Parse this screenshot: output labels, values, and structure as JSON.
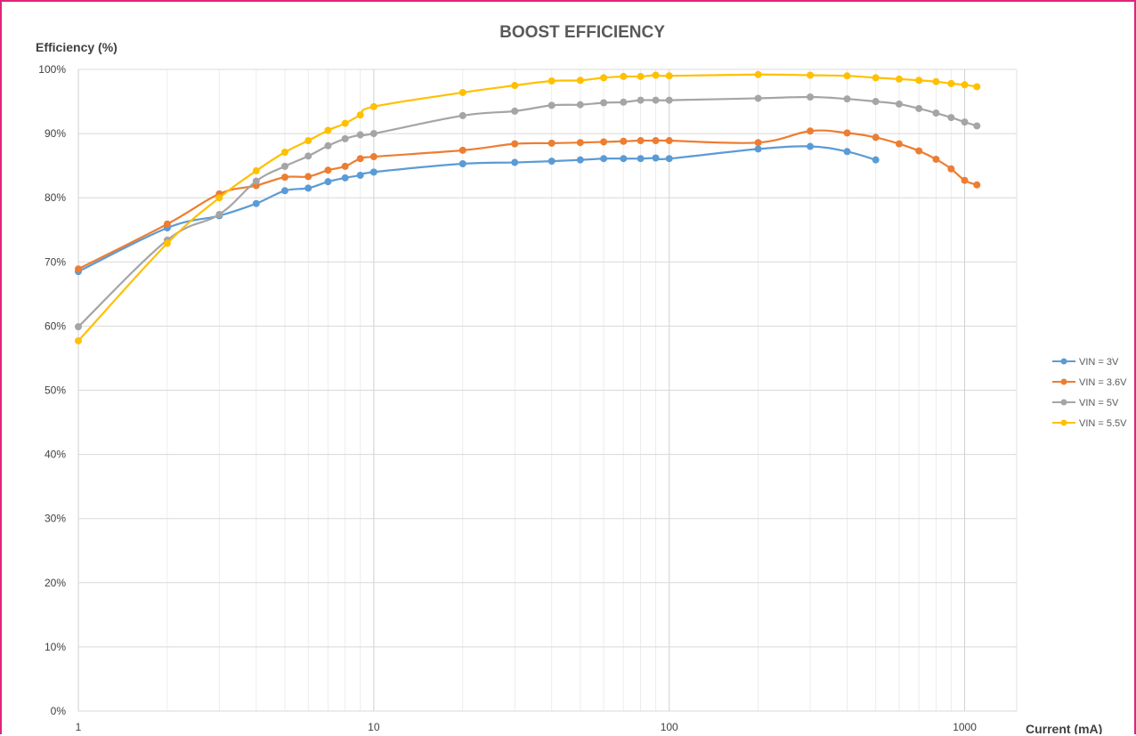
{
  "chart_data": {
    "type": "line",
    "title": "BOOST EFFICIENCY",
    "xlabel": "Current (mA)",
    "ylabel": "Efficiency (%)",
    "x_scale": "log",
    "xlim": [
      1,
      1500
    ],
    "ylim": [
      0,
      100
    ],
    "x_ticks": [
      1,
      10,
      100,
      1000
    ],
    "x_tick_labels": [
      "1",
      "10",
      "100",
      "1000"
    ],
    "y_ticks": [
      0,
      10,
      20,
      30,
      40,
      50,
      60,
      70,
      80,
      90,
      100
    ],
    "y_tick_labels": [
      "0%",
      "10%",
      "20%",
      "30%",
      "40%",
      "50%",
      "60%",
      "70%",
      "80%",
      "90%",
      "100%"
    ],
    "grid": true,
    "legend_position": "right",
    "series": [
      {
        "name": "VIN = 3V",
        "color": "#5b9bd5",
        "x": [
          1,
          2,
          3,
          4,
          5,
          6,
          7,
          8,
          9,
          10,
          20,
          30,
          40,
          50,
          60,
          70,
          80,
          90,
          100,
          200,
          300,
          400,
          500
        ],
        "y": [
          68.5,
          75.3,
          77.2,
          79.1,
          81.1,
          81.5,
          82.5,
          83.1,
          83.5,
          84.0,
          85.3,
          85.5,
          85.7,
          85.9,
          86.1,
          86.1,
          86.1,
          86.2,
          86.1,
          87.6,
          88.0,
          87.2,
          85.9
        ]
      },
      {
        "name": "VIN = 3.6V",
        "color": "#ed7d31",
        "x": [
          1,
          2,
          3,
          4,
          5,
          6,
          7,
          8,
          9,
          10,
          20,
          30,
          40,
          50,
          60,
          70,
          80,
          90,
          100,
          200,
          300,
          400,
          500,
          600,
          700,
          800,
          900,
          1000,
          1100
        ],
        "y": [
          68.9,
          75.9,
          80.6,
          81.9,
          83.2,
          83.3,
          84.3,
          84.9,
          86.1,
          86.4,
          87.4,
          88.4,
          88.5,
          88.6,
          88.7,
          88.8,
          88.9,
          88.9,
          88.9,
          88.6,
          90.4,
          90.1,
          89.4,
          88.4,
          87.3,
          86.0,
          84.5,
          82.7,
          82.0
        ]
      },
      {
        "name": "VIN = 5V",
        "color": "#a5a5a5",
        "x": [
          1,
          2,
          3,
          4,
          5,
          6,
          7,
          8,
          9,
          10,
          20,
          30,
          40,
          50,
          60,
          70,
          80,
          90,
          100,
          200,
          300,
          400,
          500,
          600,
          700,
          800,
          900,
          1000,
          1100
        ],
        "y": [
          59.9,
          73.4,
          77.4,
          82.6,
          84.9,
          86.5,
          88.1,
          89.2,
          89.8,
          90.0,
          92.8,
          93.5,
          94.4,
          94.5,
          94.8,
          94.9,
          95.2,
          95.2,
          95.2,
          95.5,
          95.7,
          95.4,
          95.0,
          94.6,
          93.9,
          93.2,
          92.5,
          91.8,
          91.2
        ]
      },
      {
        "name": "VIN = 5.5V",
        "color": "#ffc000",
        "x": [
          1,
          2,
          3,
          4,
          5,
          6,
          7,
          8,
          9,
          10,
          20,
          30,
          40,
          50,
          60,
          70,
          80,
          90,
          100,
          200,
          300,
          400,
          500,
          600,
          700,
          800,
          900,
          1000,
          1100
        ],
        "y": [
          57.7,
          72.9,
          80.0,
          84.2,
          87.1,
          88.9,
          90.5,
          91.6,
          92.9,
          94.2,
          96.4,
          97.5,
          98.2,
          98.3,
          98.7,
          98.9,
          98.9,
          99.1,
          99.0,
          99.2,
          99.1,
          99.0,
          98.7,
          98.5,
          98.3,
          98.1,
          97.8,
          97.6,
          97.3
        ]
      }
    ]
  }
}
